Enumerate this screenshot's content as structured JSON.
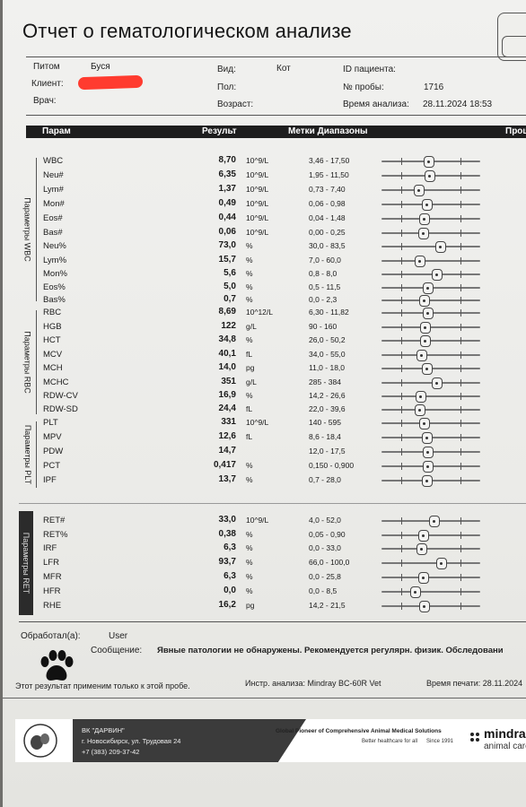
{
  "title": "Отчет о гематологическом анализе",
  "header": {
    "pet_label": "Питом",
    "pet_value": "Буся",
    "client_label": "Клиент:",
    "doctor_label": "Врач:",
    "species_label": "Вид:",
    "species_value": "Кот",
    "sex_label": "Пол:",
    "age_label": "Возраст:",
    "patient_id_label": "ID пациента:",
    "sample_label": "№ пробы:",
    "sample_value": "1716",
    "time_label": "Время анализа:",
    "time_value": "28.11.2024 18:53"
  },
  "table_header": {
    "param": "Парам",
    "result": "Результ",
    "ranges": "Метки Диапазоны",
    "extra": "Прош"
  },
  "groups": {
    "wbc": "Параметры WBC",
    "rbc": "Параметры RBC",
    "plt": "Параметры PLT",
    "ret": "Параметры RET"
  },
  "rows": [
    {
      "param": "WBC",
      "value": "8,70",
      "unit": "10^9/L",
      "range": "3,46 - 17,50",
      "level": 0.47
    },
    {
      "param": "Neu#",
      "value": "6,35",
      "unit": "10^9/L",
      "range": "1,95 - 11,50",
      "level": 0.48
    },
    {
      "param": "Lym#",
      "value": "1,37",
      "unit": "10^9/L",
      "range": "0,73 - 7,40",
      "level": 0.37
    },
    {
      "param": "Mon#",
      "value": "0,49",
      "unit": "10^9/L",
      "range": "0,06 - 0,98",
      "level": 0.45
    },
    {
      "param": "Eos#",
      "value": "0,44",
      "unit": "10^9/L",
      "range": "0,04 - 1,48",
      "level": 0.43
    },
    {
      "param": "Bas#",
      "value": "0,06",
      "unit": "10^9/L",
      "range": "0,00 - 0,25",
      "level": 0.42
    },
    {
      "param": "Neu%",
      "value": "73,0",
      "unit": "%",
      "range": "30,0 - 83,5",
      "level": 0.59
    },
    {
      "param": "Lym%",
      "value": "15,7",
      "unit": "%",
      "range": "7,0 - 60,0",
      "level": 0.38
    },
    {
      "param": "Mon%",
      "value": "5,6",
      "unit": "%",
      "range": "0,8 - 8,0",
      "level": 0.55
    },
    {
      "param": "Eos%",
      "value": "5,0",
      "unit": "%",
      "range": "0,5 - 11,5",
      "level": 0.46
    },
    {
      "param": "Bas%",
      "value": "0,7",
      "unit": "%",
      "range": "0,0 - 2,3",
      "level": 0.43
    },
    {
      "param": "RBC",
      "value": "8,69",
      "unit": "10^12/L",
      "range": "6,30 - 11,82",
      "level": 0.46
    },
    {
      "param": "HGB",
      "value": "122",
      "unit": "g/L",
      "range": "90 - 160",
      "level": 0.44
    },
    {
      "param": "HCT",
      "value": "34,8",
      "unit": "%",
      "range": "26,0 - 50,2",
      "level": 0.44
    },
    {
      "param": "MCV",
      "value": "40,1",
      "unit": "fL",
      "range": "34,0 - 55,0",
      "level": 0.4
    },
    {
      "param": "MCH",
      "value": "14,0",
      "unit": "pg",
      "range": "11,0 - 18,0",
      "level": 0.45
    },
    {
      "param": "MCHC",
      "value": "351",
      "unit": "g/L",
      "range": "285 - 384",
      "level": 0.55
    },
    {
      "param": "RDW-CV",
      "value": "16,9",
      "unit": "%",
      "range": "14,2 - 26,6",
      "level": 0.39
    },
    {
      "param": "RDW-SD",
      "value": "24,4",
      "unit": "fL",
      "range": "22,0 - 39,6",
      "level": 0.38
    },
    {
      "param": "PLT",
      "value": "331",
      "unit": "10^9/L",
      "range": "140 - 595",
      "level": 0.43
    },
    {
      "param": "MPV",
      "value": "12,6",
      "unit": "fL",
      "range": "8,6 - 18,4",
      "level": 0.45
    },
    {
      "param": "PDW",
      "value": "14,7",
      "unit": "",
      "range": "12,0 - 17,5",
      "level": 0.46
    },
    {
      "param": "PCT",
      "value": "0,417",
      "unit": "%",
      "range": "0,150 - 0,900",
      "level": 0.46
    },
    {
      "param": "IPF",
      "value": "13,7",
      "unit": "%",
      "range": "0,7 - 28,0",
      "level": 0.45
    },
    {
      "param": "RET#",
      "value": "33,0",
      "unit": "10^9/L",
      "range": "4,0 - 52,0",
      "level": 0.53
    },
    {
      "param": "RET%",
      "value": "0,38",
      "unit": "%",
      "range": "0,05 - 0,90",
      "level": 0.42
    },
    {
      "param": "IRF",
      "value": "6,3",
      "unit": "%",
      "range": "0,0 - 33,0",
      "level": 0.4
    },
    {
      "param": "LFR",
      "value": "93,7",
      "unit": "%",
      "range": "66,0 - 100,0",
      "level": 0.6
    },
    {
      "param": "MFR",
      "value": "6,3",
      "unit": "%",
      "range": "0,0 - 25,8",
      "level": 0.42
    },
    {
      "param": "HFR",
      "value": "0,0",
      "unit": "%",
      "range": "0,0 - 8,5",
      "level": 0.34
    },
    {
      "param": "RHE",
      "value": "16,2",
      "unit": "pg",
      "range": "14,2 - 21,5",
      "level": 0.43
    }
  ],
  "processed": {
    "label": "Обработал(а):",
    "value": "User"
  },
  "message": {
    "label": "Сообщение:",
    "value": "Явные патологии не обнаружены. Рекомендуется регулярн. физик. Обследовани"
  },
  "footer": {
    "note": "Этот результат применим только к этой пробе.",
    "analyzer": "Инстр. анализа: Mindray BC-60R Vet",
    "print_time": "Время печати: 28.11.2024"
  },
  "banner": {
    "clinic": "ВК \"ДАРВИН\"",
    "address": "г. Новосибирск, ул. Трудовая 24",
    "phone": "+7 (383) 209-37-42",
    "slogan": "Global Pioneer of Comprehensive Animal Medical Solutions",
    "tagline": "Better healthcare for all",
    "since": "Since 1991",
    "brand": "mindra",
    "brand_sub": "animal care"
  },
  "colors": {
    "header_bar": "#1e1e1e",
    "redaction": "#ff3b2f",
    "paper": "#eeeeeb"
  },
  "icons": [
    "paw-icon",
    "clinic-logo-icon",
    "mindray-logo-icon"
  ]
}
